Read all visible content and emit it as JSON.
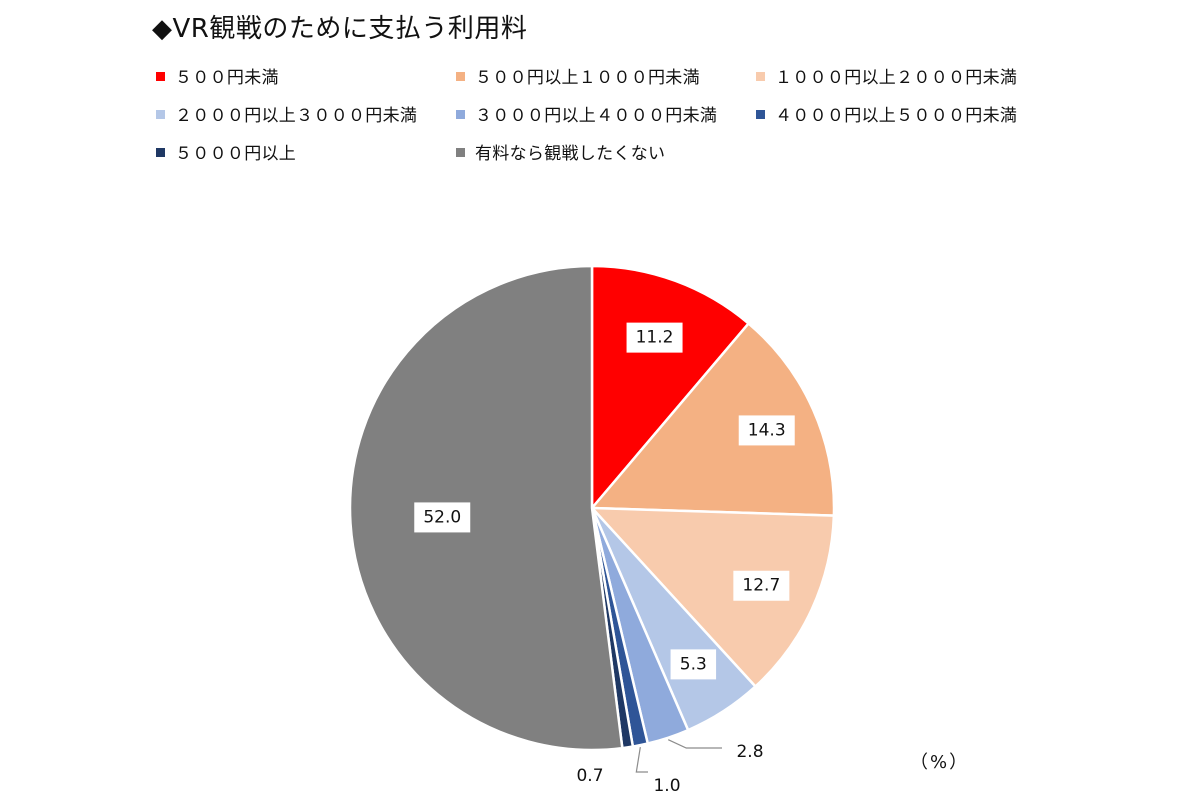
{
  "chart_data": {
    "type": "pie",
    "title": "◆VR観戦のために支払う利用料",
    "unit_label": "（%）",
    "legend_position": "top",
    "categories": [
      "５００円未満",
      "５００円以上１０００円未満",
      "１０００円以上２０００円未満",
      "２０００円以上３０００円未満",
      "３０００円以上４０００円未満",
      "４０００円以上５０００円未満",
      "５０００円以上",
      "有料なら観戦したくない"
    ],
    "values": [
      11.2,
      14.3,
      12.7,
      5.3,
      2.8,
      1.0,
      0.7,
      52.0
    ],
    "value_labels": [
      "11.2",
      "14.3",
      "12.7",
      "5.3",
      "2.8",
      "1.0",
      "0.7",
      "52.0"
    ],
    "colors": [
      "#ff0000",
      "#f4b183",
      "#f8cbad",
      "#b4c7e7",
      "#8faadc",
      "#2f5597",
      "#1f3864",
      "#808080"
    ]
  }
}
